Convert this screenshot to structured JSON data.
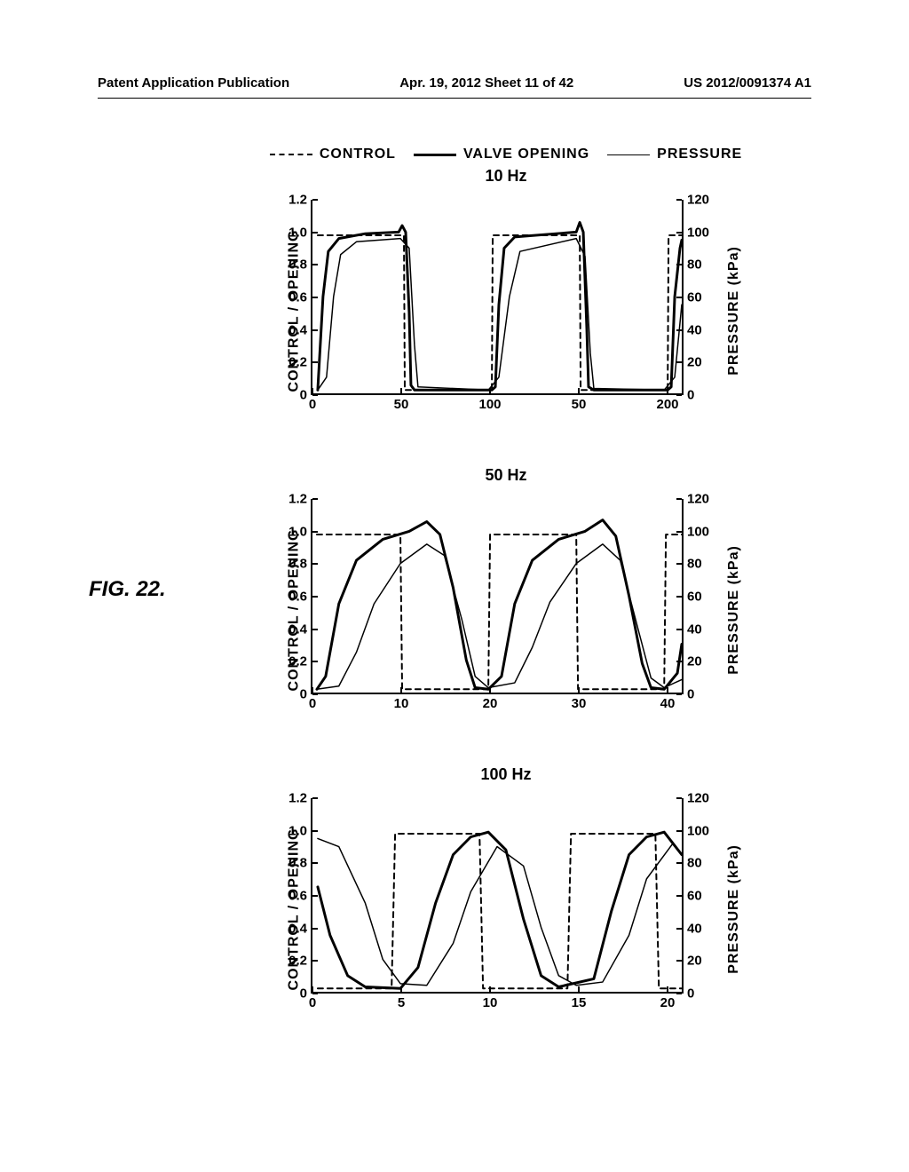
{
  "header": {
    "left": "Patent Application Publication",
    "center": "Apr. 19, 2012  Sheet 11 of 42",
    "right": "US 2012/0091374 A1"
  },
  "figure_label": "FIG. 22.",
  "legend": {
    "control": "CONTROL",
    "valve": "VALVE  OPENING",
    "pressure": "PRESSURE"
  },
  "axis_labels": {
    "left": "CONTROL / OPENING",
    "right": "PRESSURE (kPa)"
  },
  "yticks_left": [
    0,
    0.2,
    0.4,
    0.6,
    0.8,
    "1.0",
    1.2
  ],
  "yticks_right": [
    0,
    20,
    40,
    60,
    80,
    100,
    120
  ],
  "charts": [
    {
      "title": "10  Hz",
      "xticks": [
        0,
        50,
        100,
        50,
        200
      ],
      "xvals": [
        0,
        50,
        100,
        150,
        200
      ],
      "xlim": [
        0,
        210
      ],
      "control": [
        [
          3,
          0.98
        ],
        [
          52,
          0.98
        ],
        [
          52.5,
          0.02
        ],
        [
          102,
          0.02
        ],
        [
          102.5,
          0.98
        ],
        [
          152,
          0.98
        ],
        [
          152.5,
          0.02
        ],
        [
          202,
          0.02
        ],
        [
          202.5,
          0.98
        ],
        [
          210,
          0.98
        ]
      ],
      "valve": [
        [
          3,
          0.02
        ],
        [
          6,
          0.6
        ],
        [
          9,
          0.88
        ],
        [
          15,
          0.96
        ],
        [
          30,
          0.99
        ],
        [
          49,
          1.0
        ],
        [
          51,
          1.04
        ],
        [
          53,
          1.0
        ],
        [
          55,
          0.5
        ],
        [
          56,
          0.05
        ],
        [
          58,
          0.02
        ],
        [
          102,
          0.02
        ],
        [
          104,
          0.04
        ],
        [
          106,
          0.55
        ],
        [
          109,
          0.9
        ],
        [
          115,
          0.97
        ],
        [
          150,
          1.0
        ],
        [
          152,
          1.06
        ],
        [
          154,
          1.0
        ],
        [
          156,
          0.4
        ],
        [
          157,
          0.04
        ],
        [
          160,
          0.02
        ],
        [
          202,
          0.02
        ],
        [
          204,
          0.04
        ],
        [
          206,
          0.6
        ],
        [
          209,
          0.9
        ],
        [
          210,
          0.95
        ]
      ],
      "pressure": [
        [
          3,
          0.02
        ],
        [
          8,
          0.1
        ],
        [
          12,
          0.6
        ],
        [
          16,
          0.86
        ],
        [
          25,
          0.94
        ],
        [
          50,
          0.96
        ],
        [
          55,
          0.9
        ],
        [
          58,
          0.3
        ],
        [
          60,
          0.04
        ],
        [
          100,
          0.02
        ],
        [
          106,
          0.1
        ],
        [
          112,
          0.6
        ],
        [
          118,
          0.88
        ],
        [
          150,
          0.96
        ],
        [
          155,
          0.85
        ],
        [
          158,
          0.25
        ],
        [
          160,
          0.03
        ],
        [
          200,
          0.02
        ],
        [
          206,
          0.1
        ],
        [
          210,
          0.55
        ]
      ]
    },
    {
      "title": "50  Hz",
      "xticks": [
        0,
        10,
        20,
        30,
        40
      ],
      "xvals": [
        0,
        10,
        20,
        30,
        40
      ],
      "xlim": [
        0,
        42
      ],
      "control": [
        [
          0.5,
          0.98
        ],
        [
          10,
          0.98
        ],
        [
          10.2,
          0.02
        ],
        [
          20,
          0.02
        ],
        [
          20.2,
          0.98
        ],
        [
          30,
          0.98
        ],
        [
          30.2,
          0.02
        ],
        [
          40,
          0.02
        ],
        [
          40.2,
          0.98
        ],
        [
          42,
          0.98
        ]
      ],
      "valve": [
        [
          0.5,
          0.02
        ],
        [
          1.5,
          0.1
        ],
        [
          3,
          0.55
        ],
        [
          5,
          0.82
        ],
        [
          8,
          0.95
        ],
        [
          11,
          1.0
        ],
        [
          13,
          1.06
        ],
        [
          14.5,
          0.98
        ],
        [
          16,
          0.65
        ],
        [
          17.5,
          0.2
        ],
        [
          18.5,
          0.03
        ],
        [
          20,
          0.02
        ],
        [
          21.5,
          0.1
        ],
        [
          23,
          0.55
        ],
        [
          25,
          0.82
        ],
        [
          28,
          0.95
        ],
        [
          31,
          1.0
        ],
        [
          33,
          1.07
        ],
        [
          34.5,
          0.97
        ],
        [
          36,
          0.6
        ],
        [
          37.5,
          0.18
        ],
        [
          38.5,
          0.03
        ],
        [
          40,
          0.02
        ],
        [
          41.5,
          0.12
        ],
        [
          42,
          0.3
        ]
      ],
      "pressure": [
        [
          0.5,
          0.02
        ],
        [
          3,
          0.04
        ],
        [
          5,
          0.25
        ],
        [
          7,
          0.55
        ],
        [
          10,
          0.8
        ],
        [
          13,
          0.92
        ],
        [
          15,
          0.85
        ],
        [
          17,
          0.45
        ],
        [
          18.5,
          0.1
        ],
        [
          20,
          0.03
        ],
        [
          23,
          0.06
        ],
        [
          25,
          0.28
        ],
        [
          27,
          0.56
        ],
        [
          30,
          0.8
        ],
        [
          33,
          0.92
        ],
        [
          35,
          0.82
        ],
        [
          37,
          0.4
        ],
        [
          38.5,
          0.09
        ],
        [
          40,
          0.03
        ],
        [
          42,
          0.08
        ]
      ]
    },
    {
      "title": "100  Hz",
      "xticks": [
        0,
        5,
        10,
        15,
        20
      ],
      "xvals": [
        0,
        5,
        10,
        15,
        20
      ],
      "xlim": [
        0,
        21
      ],
      "control": [
        [
          0.3,
          0.02
        ],
        [
          4.5,
          0.02
        ],
        [
          4.7,
          0.98
        ],
        [
          9.5,
          0.98
        ],
        [
          9.7,
          0.02
        ],
        [
          14.5,
          0.02
        ],
        [
          14.7,
          0.98
        ],
        [
          19.5,
          0.98
        ],
        [
          19.7,
          0.02
        ],
        [
          21,
          0.02
        ]
      ],
      "valve": [
        [
          0.3,
          0.65
        ],
        [
          1,
          0.35
        ],
        [
          2,
          0.1
        ],
        [
          3,
          0.03
        ],
        [
          5,
          0.02
        ],
        [
          6,
          0.15
        ],
        [
          7,
          0.55
        ],
        [
          8,
          0.85
        ],
        [
          9,
          0.96
        ],
        [
          10,
          0.99
        ],
        [
          11,
          0.88
        ],
        [
          12,
          0.45
        ],
        [
          13,
          0.1
        ],
        [
          14,
          0.03
        ],
        [
          16,
          0.08
        ],
        [
          17,
          0.5
        ],
        [
          18,
          0.85
        ],
        [
          19,
          0.96
        ],
        [
          20,
          0.99
        ],
        [
          21,
          0.85
        ]
      ],
      "pressure": [
        [
          0.3,
          0.95
        ],
        [
          1.5,
          0.9
        ],
        [
          3,
          0.55
        ],
        [
          4,
          0.2
        ],
        [
          5,
          0.05
        ],
        [
          6.5,
          0.04
        ],
        [
          8,
          0.3
        ],
        [
          9,
          0.62
        ],
        [
          10.5,
          0.9
        ],
        [
          12,
          0.78
        ],
        [
          13,
          0.4
        ],
        [
          14,
          0.1
        ],
        [
          15,
          0.04
        ],
        [
          16.5,
          0.06
        ],
        [
          18,
          0.35
        ],
        [
          19,
          0.7
        ],
        [
          20.5,
          0.92
        ],
        [
          21,
          0.85
        ]
      ]
    }
  ],
  "colors": {
    "stroke": "#000000",
    "bg": "#ffffff"
  },
  "line_styles": {
    "control": {
      "dash": "6,5",
      "width": 2
    },
    "valve": {
      "dash": "",
      "width": 3
    },
    "pressure": {
      "dash": "",
      "width": 1.5
    }
  }
}
